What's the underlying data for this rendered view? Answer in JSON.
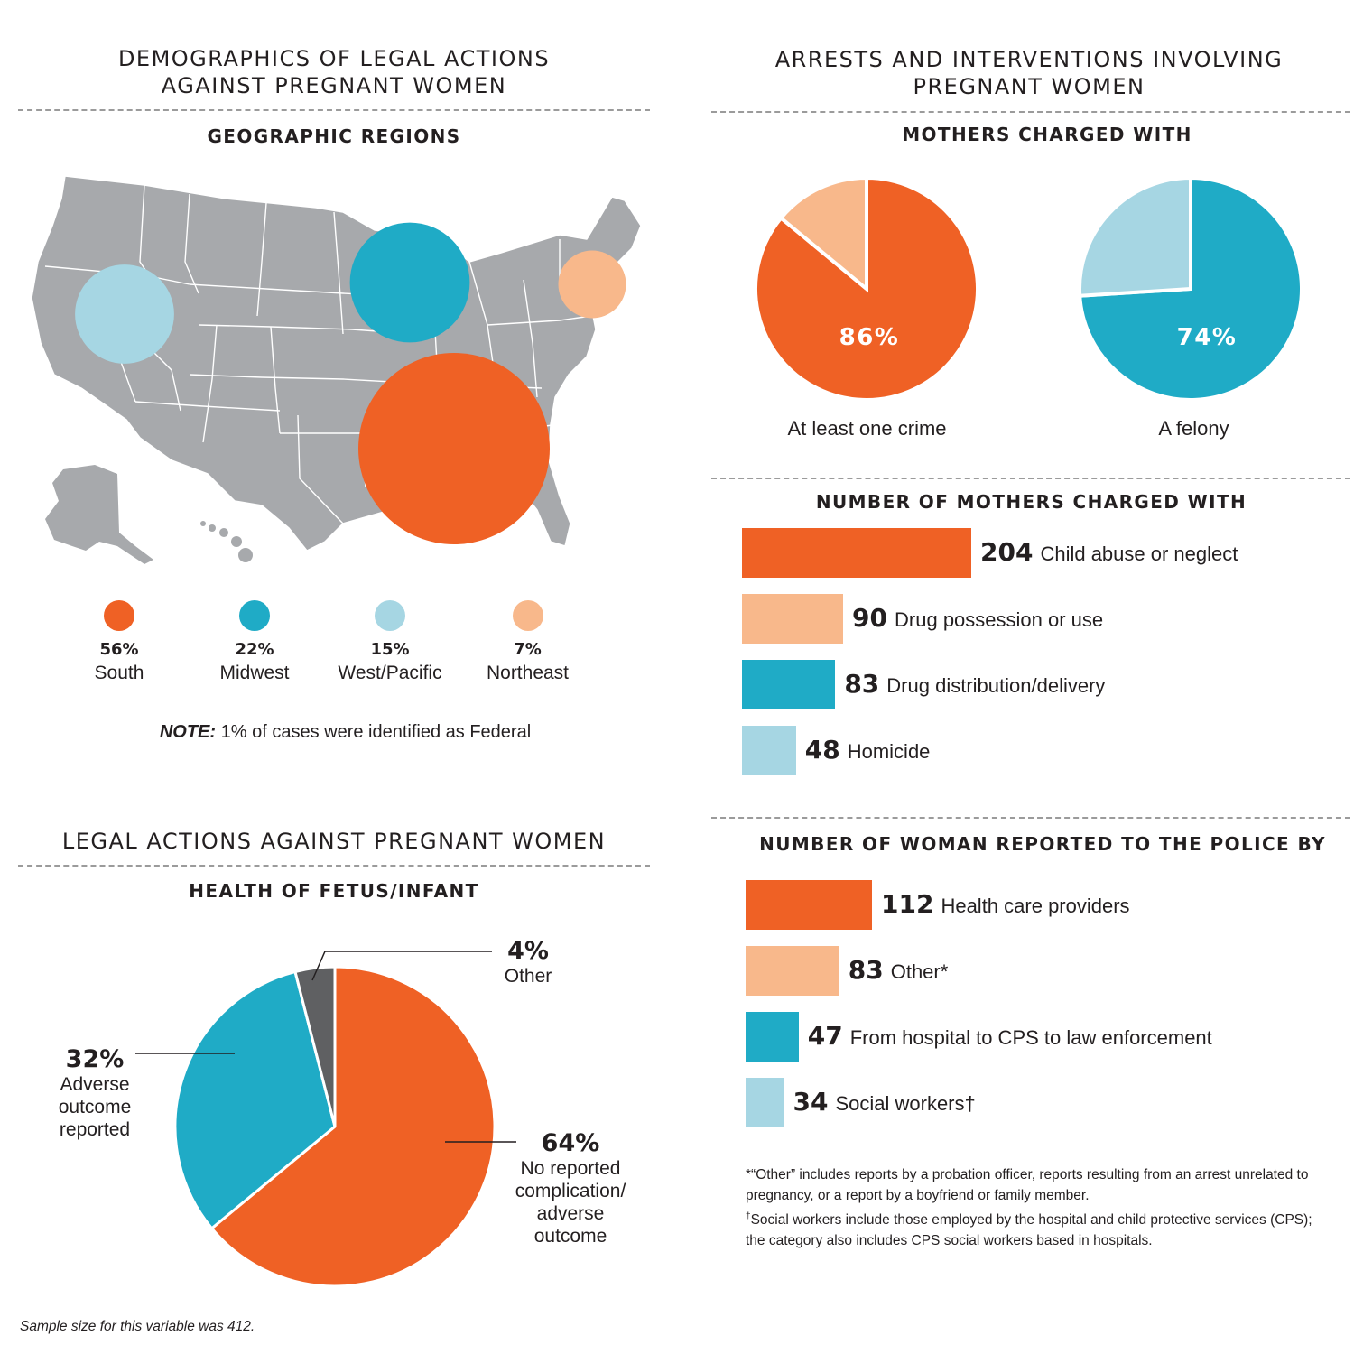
{
  "colors": {
    "orange": "#ef6125",
    "peach": "#f8b88b",
    "teal": "#1fabc6",
    "light_blue": "#a6d6e3",
    "dark_gray": "#5f6062",
    "map_gray": "#a7a9ac"
  },
  "left_top": {
    "title_line1": "DEMOGRAPHICS OF LEGAL ACTIONS",
    "title_line2": "AGAINST PREGNANT WOMEN",
    "subtitle": "GEOGRAPHIC REGIONS",
    "note_label": "NOTE:",
    "note_text": " 1% of cases were identified as Federal"
  },
  "left_bottom": {
    "title": "LEGAL ACTIONS AGAINST PREGNANT WOMEN",
    "subtitle": "HEALTH OF FETUS/INFANT",
    "sample_note": "Sample size for this variable was 412."
  },
  "right_top": {
    "title_line1": "ARRESTS AND INTERVENTIONS INVOLVING",
    "title_line2": "PREGNANT WOMEN",
    "subtitle": "MOTHERS CHARGED WITH"
  },
  "right_mid": {
    "subtitle": "NUMBER OF MOTHERS CHARGED WITH"
  },
  "right_bottom": {
    "subtitle": "NUMBER OF WOMAN REPORTED TO THE POLICE BY",
    "footnote1": "*“Other” includes reports by a probation officer, reports resulting from an arrest unrelated to pregnancy, or a report by a boyfriend or family member.",
    "footnote2_mark": "†",
    "footnote2": "Social workers include those employed by the hospital and child protective services (CPS); the category also includes CPS social workers based in hospitals."
  },
  "chart_data": [
    {
      "type": "bubble-map",
      "title": "GEOGRAPHIC REGIONS",
      "categories": [
        "South",
        "Midwest",
        "West/Pacific",
        "Northeast"
      ],
      "values": [
        56,
        22,
        15,
        7
      ],
      "labels": [
        "56%",
        "22%",
        "15%",
        "7%"
      ],
      "colors": [
        "#ef6125",
        "#1fabc6",
        "#a6d6e3",
        "#f8b88b"
      ],
      "unit": "%"
    },
    {
      "type": "pie",
      "title": "MOTHERS CHARGED WITH",
      "caption": "At least one crime",
      "value": 86,
      "label": "86%",
      "colors": [
        "#ef6125",
        "#f8b88b"
      ]
    },
    {
      "type": "pie",
      "title": "MOTHERS CHARGED WITH",
      "caption": "A felony",
      "value": 74,
      "label": "74%",
      "colors": [
        "#1fabc6",
        "#a6d6e3"
      ]
    },
    {
      "type": "bar",
      "title": "NUMBER OF MOTHERS CHARGED WITH",
      "categories": [
        "Child abuse or neglect",
        "Drug possession or use",
        "Drug distribution/delivery",
        "Homicide"
      ],
      "values": [
        204,
        90,
        83,
        48
      ],
      "colors": [
        "#ef6125",
        "#f8b88b",
        "#1fabc6",
        "#a6d6e3"
      ]
    },
    {
      "type": "bar",
      "title": "NUMBER OF WOMAN REPORTED TO THE POLICE BY",
      "categories": [
        "Health care providers",
        "Other*",
        "From hospital to CPS to law enforcement",
        "Social workers†"
      ],
      "values": [
        112,
        83,
        47,
        34
      ],
      "colors": [
        "#ef6125",
        "#f8b88b",
        "#1fabc6",
        "#a6d6e3"
      ]
    },
    {
      "type": "pie",
      "title": "HEALTH OF FETUS/INFANT",
      "slices": [
        {
          "name": "No reported complication/ adverse outcome",
          "value": 64,
          "label": "64%",
          "lines": [
            "No reported",
            "complication/",
            "adverse",
            "outcome"
          ],
          "color": "#ef6125"
        },
        {
          "name": "Adverse outcome reported",
          "value": 32,
          "label": "32%",
          "lines": [
            "Adverse",
            "outcome",
            "reported"
          ],
          "color": "#1fabc6"
        },
        {
          "name": "Other",
          "value": 4,
          "label": "4%",
          "lines": [
            "Other"
          ],
          "color": "#5f6062"
        }
      ]
    }
  ]
}
